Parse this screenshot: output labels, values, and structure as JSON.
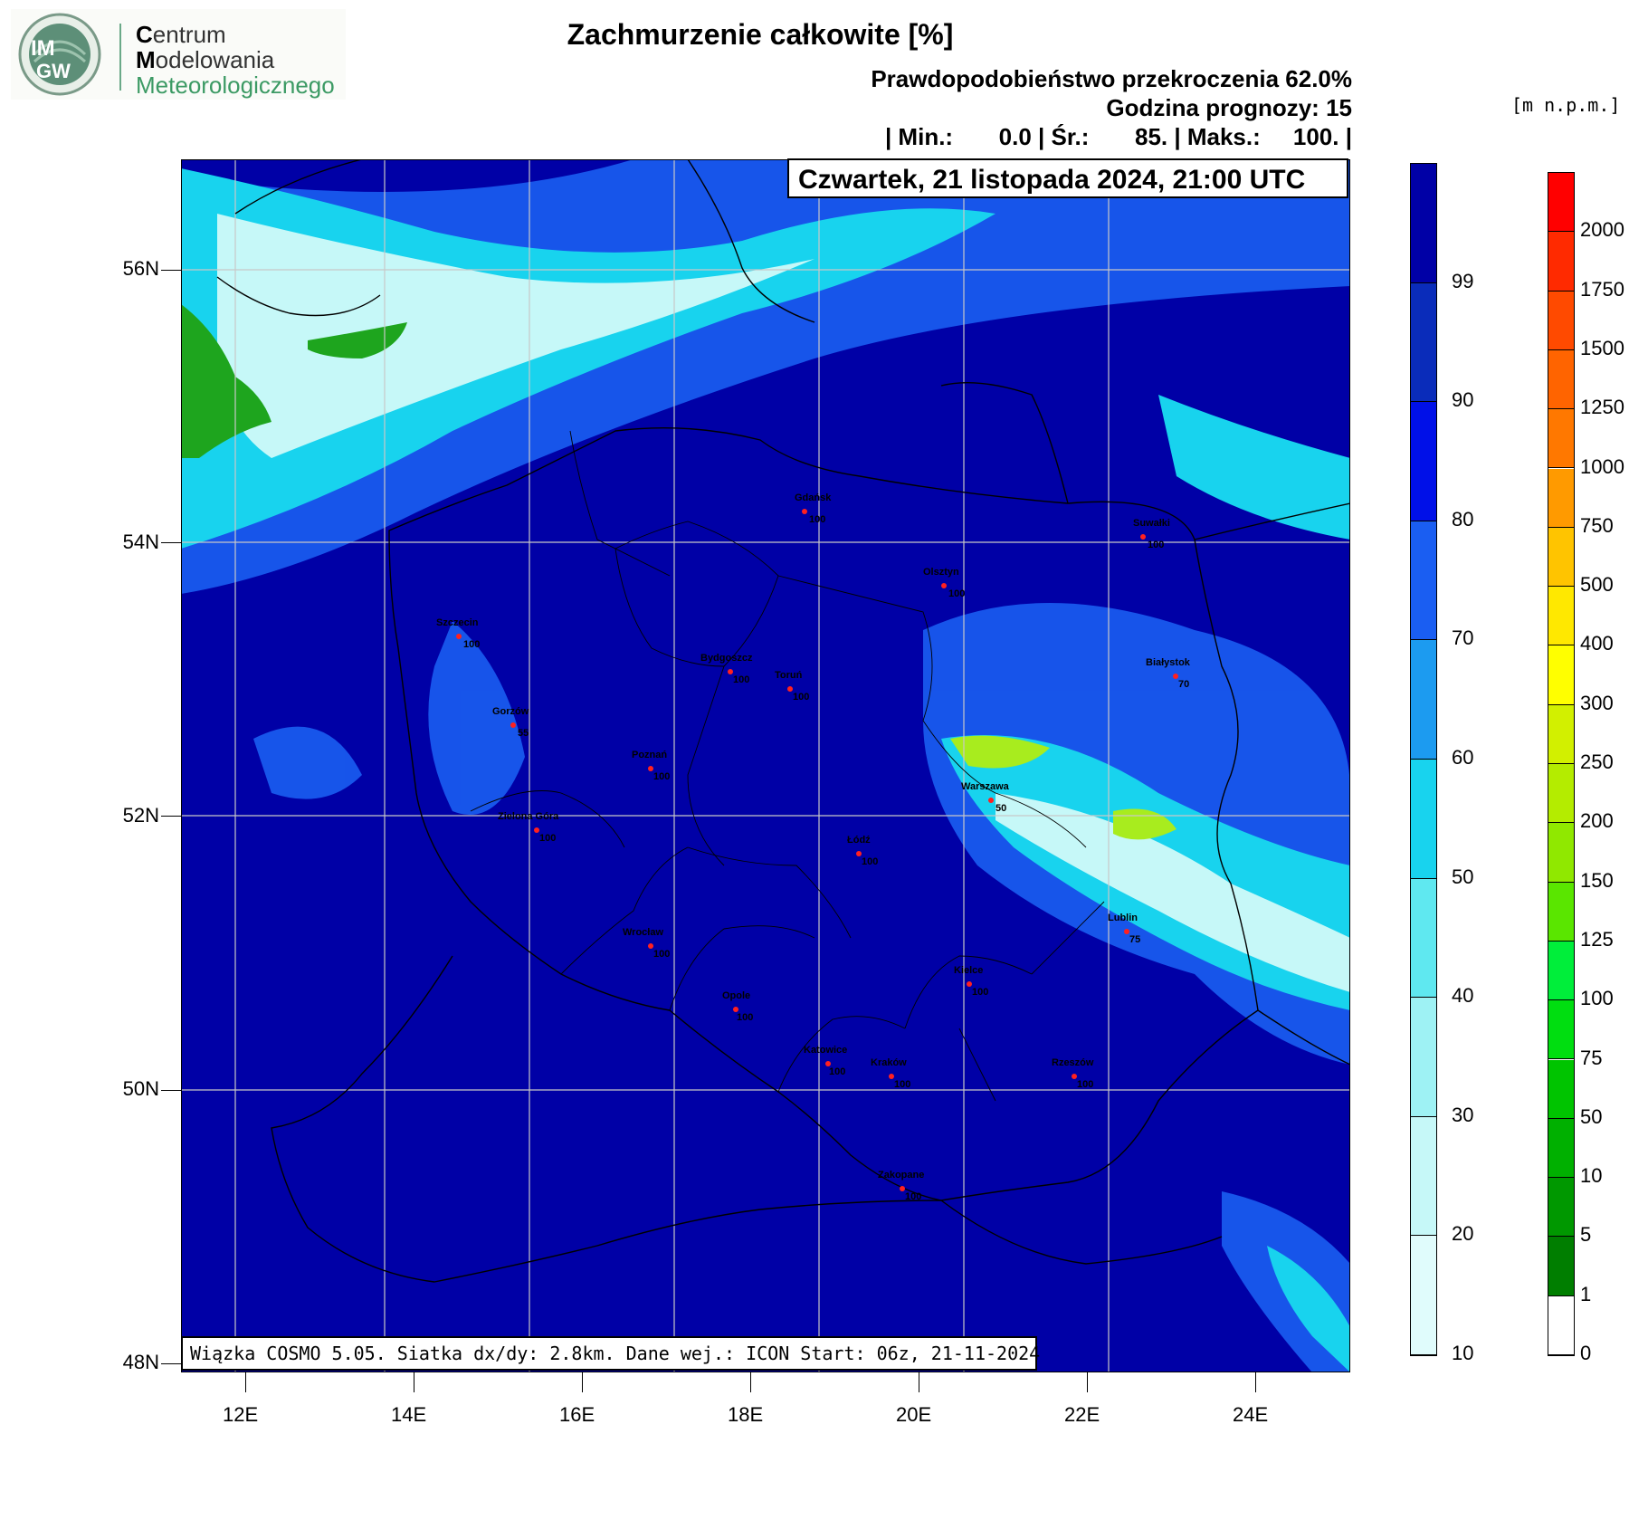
{
  "header": {
    "title": "Zachmurzenie całkowite [%]",
    "line1": "Prawdopodobieństwo przekroczenia 62.0%",
    "line2": "Godzina prognozy: 15",
    "line3": "| Min.:       0.0 | Śr.:       85. | Maks.:     100. |",
    "unit": "[m  n.p.m.]",
    "date": "Czwartek, 21 listopada 2024, 21:00 UTC"
  },
  "logo": {
    "abbr_top": "IM",
    "abbr_bottom": "GW",
    "line1_first": "C",
    "line1_rest": "entrum",
    "line2_first": "M",
    "line2_rest": "odelowania",
    "line3_first": "M",
    "line3_rest": "eteorologicznego"
  },
  "footer": "Wiązka COSMO 5.05. Siatka dx/dy: 2.8km. Dane wej.: ICON Start: 06z, 21-11-2024",
  "axes": {
    "x_ticks": [
      "12E",
      "14E",
      "16E",
      "18E",
      "20E",
      "22E",
      "24E"
    ],
    "y_ticks": [
      "56N",
      "54N",
      "52N",
      "50N",
      "48N"
    ]
  },
  "cloud_colorbar": {
    "labels": [
      "99",
      "90",
      "80",
      "70",
      "60",
      "50",
      "40",
      "30",
      "20",
      "10"
    ],
    "colors": [
      "#0000a6",
      "#0a2cba",
      "#0010e8",
      "#1a5ef2",
      "#1c9bf0",
      "#18d3ee",
      "#5fe8f0",
      "#9ef2f4",
      "#c6f8f8",
      "#e0fcfc"
    ]
  },
  "height_colorbar": {
    "labels": [
      "2000",
      "1750",
      "1500",
      "1250",
      "1000",
      "750",
      "500",
      "400",
      "300",
      "250",
      "200",
      "150",
      "125",
      "100",
      "75",
      "50",
      "10",
      "5",
      "1",
      "0"
    ],
    "colors": [
      "#ff0000",
      "#ff2a00",
      "#ff4a00",
      "#ff6400",
      "#ff7800",
      "#ff9a00",
      "#ffc400",
      "#ffe800",
      "#ffff00",
      "#d2f000",
      "#b4ec00",
      "#90e800",
      "#5ae600",
      "#00ee3a",
      "#00de10",
      "#00c400",
      "#00b000",
      "#009800",
      "#007e00",
      "#ffffff"
    ]
  },
  "cities": [
    {
      "name": "Gdańsk",
      "value": "100"
    },
    {
      "name": "Suwałki",
      "value": "100"
    },
    {
      "name": "Olsztyn",
      "value": "100"
    },
    {
      "name": "Szczecin",
      "value": "100"
    },
    {
      "name": "Bydgoszcz",
      "value": "100"
    },
    {
      "name": "Toruń",
      "value": "100"
    },
    {
      "name": "Białystok",
      "value": "70"
    },
    {
      "name": "Gorzów",
      "value": "55"
    },
    {
      "name": "Poznań",
      "value": "100"
    },
    {
      "name": "Warszawa",
      "value": "50"
    },
    {
      "name": "Zielona Góra",
      "value": "100"
    },
    {
      "name": "Łódź",
      "value": "100"
    },
    {
      "name": "Lublin",
      "value": "75"
    },
    {
      "name": "Wrocław",
      "value": "100"
    },
    {
      "name": "Kielce",
      "value": "100"
    },
    {
      "name": "Opole",
      "value": "100"
    },
    {
      "name": "Katowice",
      "value": "100"
    },
    {
      "name": "Kraków",
      "value": "100"
    },
    {
      "name": "Rzeszów",
      "value": "100"
    },
    {
      "name": "Zakopane",
      "value": "100"
    }
  ],
  "colors": {
    "map_background": "#0000a6",
    "grid": "#c8c8c8",
    "city_marker": "#ff2020"
  }
}
